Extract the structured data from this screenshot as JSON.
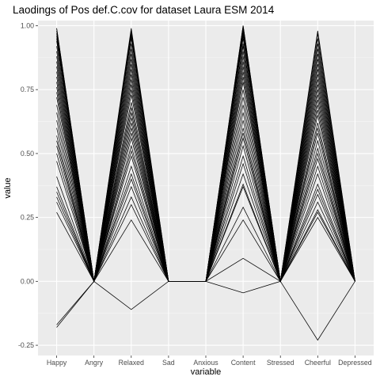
{
  "chart_data": {
    "type": "line",
    "title": "Laodings of Pos def.C.cov for dataset Laura ESM 2014",
    "xlabel": "variable",
    "ylabel": "value",
    "categories": [
      "Happy",
      "Angry",
      "Relaxed",
      "Sad",
      "Anxious",
      "Content",
      "Stressed",
      "Cheerful",
      "Depressed"
    ],
    "y_ticks": [
      {
        "value": -0.25,
        "label": "-0.25"
      },
      {
        "value": 0.0,
        "label": "0.00"
      },
      {
        "value": 0.25,
        "label": "0.25"
      },
      {
        "value": 0.5,
        "label": "0.50"
      },
      {
        "value": 0.75,
        "label": "0.75"
      },
      {
        "value": 1.0,
        "label": "1.00"
      }
    ],
    "ylim": [
      -0.29,
      1.02
    ],
    "grid": true,
    "legend": "none",
    "line_color": "#000000",
    "panel_color": "#ebebeb",
    "series": [
      {
        "values": [
          -0.18,
          0,
          -0.11,
          0,
          0,
          -0.045,
          0,
          -0.23,
          0
        ]
      },
      {
        "values": [
          -0.17,
          0,
          0.24,
          0,
          0,
          0.09,
          0,
          0.25,
          0
        ]
      },
      {
        "values": [
          0.27,
          0,
          0.3,
          0,
          0,
          0.24,
          0,
          0.27,
          0
        ]
      },
      {
        "values": [
          0.31,
          0,
          0.33,
          0,
          0,
          0.29,
          0,
          0.28,
          0
        ]
      },
      {
        "values": [
          0.33,
          0,
          0.37,
          0,
          0,
          0.37,
          0,
          0.31,
          0
        ]
      },
      {
        "values": [
          0.35,
          0,
          0.4,
          0,
          0,
          0.38,
          0,
          0.34,
          0
        ]
      },
      {
        "values": [
          0.37,
          0,
          0.42,
          0,
          0,
          0.42,
          0,
          0.36,
          0
        ]
      },
      {
        "values": [
          0.41,
          0,
          0.45,
          0,
          0,
          0.46,
          0,
          0.38,
          0
        ]
      },
      {
        "values": [
          0.47,
          0,
          0.49,
          0,
          0,
          0.49,
          0,
          0.42,
          0
        ]
      },
      {
        "values": [
          0.5,
          0,
          0.51,
          0,
          0,
          0.53,
          0,
          0.45,
          0
        ]
      },
      {
        "values": [
          0.53,
          0,
          0.53,
          0,
          0,
          0.56,
          0,
          0.48,
          0
        ]
      },
      {
        "values": [
          0.55,
          0,
          0.56,
          0,
          0,
          0.58,
          0,
          0.5,
          0
        ]
      },
      {
        "values": [
          0.57,
          0,
          0.58,
          0,
          0,
          0.6,
          0,
          0.52,
          0
        ]
      },
      {
        "values": [
          0.6,
          0,
          0.6,
          0,
          0,
          0.63,
          0,
          0.55,
          0
        ]
      },
      {
        "values": [
          0.63,
          0,
          0.62,
          0,
          0,
          0.66,
          0,
          0.58,
          0
        ]
      },
      {
        "values": [
          0.66,
          0,
          0.64,
          0,
          0,
          0.69,
          0,
          0.6,
          0
        ]
      },
      {
        "values": [
          0.69,
          0,
          0.66,
          0,
          0,
          0.72,
          0,
          0.62,
          0
        ]
      },
      {
        "values": [
          0.72,
          0,
          0.68,
          0,
          0,
          0.75,
          0,
          0.65,
          0
        ]
      },
      {
        "values": [
          0.74,
          0,
          0.7,
          0,
          0,
          0.78,
          0,
          0.67,
          0
        ]
      },
      {
        "values": [
          0.76,
          0,
          0.73,
          0,
          0,
          0.8,
          0,
          0.69,
          0
        ]
      },
      {
        "values": [
          0.78,
          0,
          0.75,
          0,
          0,
          0.82,
          0,
          0.71,
          0
        ]
      },
      {
        "values": [
          0.8,
          0,
          0.77,
          0,
          0,
          0.84,
          0,
          0.73,
          0
        ]
      },
      {
        "values": [
          0.82,
          0,
          0.79,
          0,
          0,
          0.86,
          0,
          0.75,
          0
        ]
      },
      {
        "values": [
          0.84,
          0,
          0.81,
          0,
          0,
          0.88,
          0,
          0.77,
          0
        ]
      },
      {
        "values": [
          0.86,
          0,
          0.83,
          0,
          0,
          0.9,
          0,
          0.79,
          0
        ]
      },
      {
        "values": [
          0.88,
          0,
          0.85,
          0,
          0,
          0.92,
          0,
          0.81,
          0
        ]
      },
      {
        "values": [
          0.9,
          0,
          0.87,
          0,
          0,
          0.93,
          0,
          0.83,
          0
        ]
      },
      {
        "values": [
          0.92,
          0,
          0.89,
          0,
          0,
          0.95,
          0,
          0.85,
          0
        ]
      },
      {
        "values": [
          0.94,
          0,
          0.91,
          0,
          0,
          0.96,
          0,
          0.87,
          0
        ]
      },
      {
        "values": [
          0.95,
          0,
          0.93,
          0,
          0,
          0.97,
          0,
          0.89,
          0
        ]
      },
      {
        "values": [
          0.96,
          0,
          0.95,
          0,
          0,
          0.98,
          0,
          0.91,
          0
        ]
      },
      {
        "values": [
          0.97,
          0,
          0.96,
          0,
          0,
          0.99,
          0,
          0.93,
          0
        ]
      },
      {
        "values": [
          0.98,
          0,
          0.97,
          0,
          0,
          0.99,
          0,
          0.95,
          0
        ]
      },
      {
        "values": [
          0.99,
          0,
          0.98,
          0,
          0,
          1.0,
          0,
          0.97,
          0
        ]
      },
      {
        "values": [
          0.99,
          0,
          0.99,
          0,
          0,
          1.0,
          0,
          0.98,
          0
        ]
      }
    ]
  }
}
